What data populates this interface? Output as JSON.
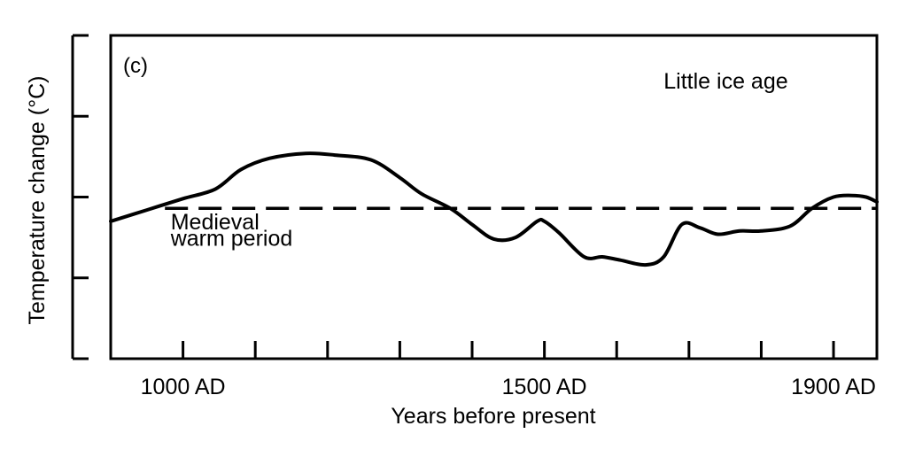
{
  "chart_data": {
    "type": "line",
    "panel_label": "(c)",
    "xlabel": "Years before present",
    "ylabel": "Temperature change (°C)",
    "x_tick_labels": [
      {
        "x": 1000,
        "label": "1000 AD"
      },
      {
        "x": 1500,
        "label": "1500 AD"
      },
      {
        "x": 1900,
        "label": "1900 AD"
      }
    ],
    "x_minor_ticks": [
      1000,
      1100,
      1200,
      1300,
      1400,
      1500,
      1600,
      1700,
      1800,
      1900
    ],
    "xlim": [
      900,
      1960
    ],
    "ylim": [
      -1.0,
      1.0
    ],
    "y_ticks": [
      -0.5,
      0.0,
      0.5
    ],
    "reference_line": {
      "y": -0.07,
      "style": "dashed"
    },
    "annotations": [
      {
        "text": "Little ice age",
        "x": 1665,
        "y": 0.67
      },
      {
        "text": "Medieval",
        "x": 983,
        "y": -0.2
      },
      {
        "text": "warm period",
        "x": 983,
        "y": -0.3
      }
    ],
    "series": [
      {
        "x": [
          900,
          950,
          1000,
          1045,
          1080,
          1120,
          1170,
          1210,
          1260,
          1300,
          1330,
          1370,
          1400,
          1430,
          1460,
          1490,
          1500,
          1520,
          1555,
          1580,
          1605,
          1640,
          1665,
          1690,
          1715,
          1740,
          1770,
          1800,
          1840,
          1870,
          1900,
          1925,
          1945,
          1960
        ],
        "y": [
          -0.15,
          -0.08,
          -0.01,
          0.05,
          0.17,
          0.24,
          0.27,
          0.26,
          0.23,
          0.12,
          0.02,
          -0.07,
          -0.17,
          -0.26,
          -0.25,
          -0.15,
          -0.15,
          -0.22,
          -0.37,
          -0.37,
          -0.39,
          -0.42,
          -0.37,
          -0.17,
          -0.19,
          -0.23,
          -0.21,
          -0.21,
          -0.18,
          -0.07,
          0.0,
          0.01,
          0.0,
          -0.03
        ]
      }
    ]
  }
}
